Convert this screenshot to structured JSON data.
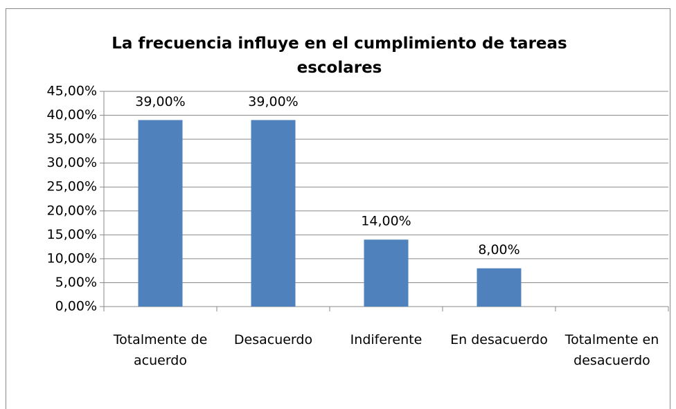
{
  "chart_data": {
    "type": "bar",
    "title": "La frecuencia influye en el cumplimiento de tareas escolares",
    "categories": [
      "Totalmente de acuerdo",
      "Desacuerdo",
      "Indiferente",
      "En desacuerdo",
      "Totalmente en desacuerdo"
    ],
    "values": [
      39,
      39,
      14,
      8,
      null
    ],
    "value_labels": [
      "39,00%",
      "39,00%",
      "14,00%",
      "8,00%",
      null
    ],
    "color": "#4f81bd",
    "ylim": [
      0,
      45
    ],
    "yticks": [
      {
        "value": 0,
        "label": "0,00%"
      },
      {
        "value": 5,
        "label": "5,00%"
      },
      {
        "value": 10,
        "label": "10,00%"
      },
      {
        "value": 15,
        "label": "15,00%"
      },
      {
        "value": 20,
        "label": "20,00%"
      },
      {
        "value": 25,
        "label": "25,00%"
      },
      {
        "value": 30,
        "label": "30,00%"
      },
      {
        "value": 35,
        "label": "35,00%"
      },
      {
        "value": 40,
        "label": "40,00%"
      },
      {
        "value": 45,
        "label": "45,00%"
      }
    ],
    "grid": true
  }
}
